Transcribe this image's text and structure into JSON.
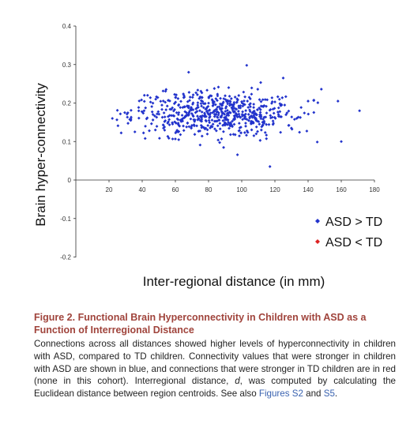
{
  "chart_data": {
    "type": "scatter",
    "xlabel": "Inter-regional distance (in mm)",
    "ylabel": "Brain hyper-connectivity",
    "xlim": [
      0,
      180
    ],
    "ylim": [
      -0.2,
      0.4
    ],
    "x_ticks": [
      "20",
      "40",
      "60",
      "80",
      "100",
      "120",
      "140",
      "160",
      "180"
    ],
    "y_ticks": [
      "0.4",
      "0.3",
      "0.2",
      "0.1",
      "0",
      "-0.1",
      "-0.2"
    ],
    "grid": false,
    "legend_position": "bottom-right",
    "series": [
      {
        "name": "ASD > TD",
        "color": "#2233cc",
        "marker": "diamond",
        "n_points": 620,
        "x_range": [
          22,
          172
        ],
        "x_center": 85,
        "y_center": 0.17,
        "y_spread": 0.03,
        "points": [
          [
            117,
            0.035
          ],
          [
            160,
            0.1
          ],
          [
            158,
            0.205
          ],
          [
            171,
            0.18
          ],
          [
            148,
            0.236
          ],
          [
            103,
            0.298
          ],
          [
            68,
            0.28
          ],
          [
            22,
            0.16
          ],
          [
            125,
            0.265
          ],
          [
            140,
            0.205
          ]
        ]
      },
      {
        "name": "ASD < TD",
        "color": "#dd2222",
        "marker": "diamond",
        "n_points": 0,
        "points": []
      }
    ]
  },
  "caption": {
    "title": "Figure 2. Functional Brain Hyperconnectivity in Children with ASD as a Function of Interregional Distance",
    "body_prefix": "Connections across all distances showed higher levels of hyperconnectivity in children with ASD, compared to TD children. Connectivity values that were stronger in children with ASD are shown in blue, and connections that were stronger in TD children are in red (none in this cohort). Interregional distance, ",
    "distance_symbol": "d",
    "body_middle": ", was computed by calculating the Euclidean distance between region centroids. See also ",
    "link1": "Figures S2",
    "body_and": " and ",
    "link2": "S5",
    "body_end": "."
  }
}
